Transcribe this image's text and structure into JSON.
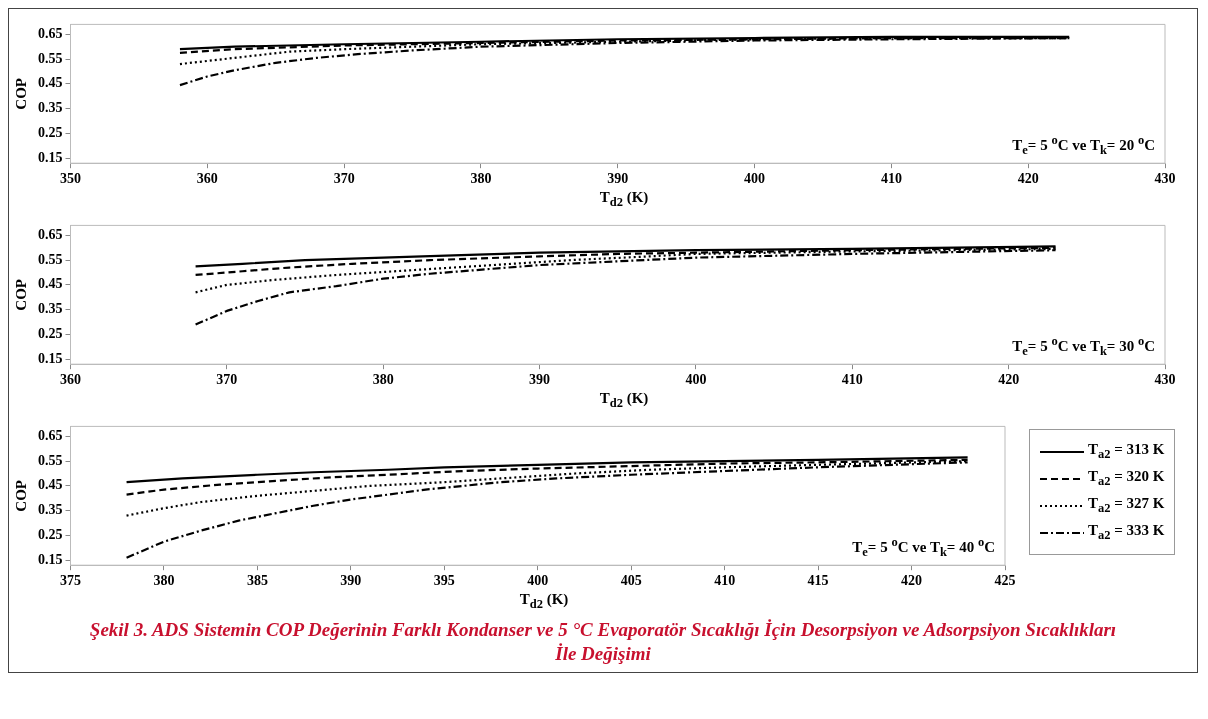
{
  "chart_data": [
    {
      "type": "line",
      "ylabel": "COP",
      "xlabel": "T$_{d2}$ (K)",
      "xlim": [
        350,
        430
      ],
      "xticks": [
        350,
        360,
        370,
        380,
        390,
        400,
        410,
        420,
        430
      ],
      "ylim": [
        0.13,
        0.69
      ],
      "yticks": [
        0.15,
        0.25,
        0.35,
        0.45,
        0.55,
        0.65
      ],
      "grid": false,
      "legend": false,
      "marker": "none",
      "annotations": [
        "T$_{e}$= 5 $^{o}$C ve T$_{k}$= 20 $^{o}$C"
      ],
      "series": [
        {
          "color": "#000000",
          "line_style": "solid",
          "x": [
            358,
            362,
            370,
            380,
            390,
            400,
            410,
            423
          ],
          "values": [
            0.59,
            0.6,
            0.61,
            0.62,
            0.63,
            0.635,
            0.64,
            0.64
          ]
        },
        {
          "color": "#000000",
          "line_style": "dashed",
          "x": [
            358,
            362,
            370,
            380,
            390,
            400,
            410,
            423
          ],
          "values": [
            0.575,
            0.59,
            0.605,
            0.615,
            0.625,
            0.63,
            0.635,
            0.635
          ]
        },
        {
          "color": "#000000",
          "line_style": "dotted",
          "x": [
            358,
            362,
            366,
            370,
            380,
            390,
            400,
            410,
            423
          ],
          "values": [
            0.53,
            0.555,
            0.58,
            0.59,
            0.61,
            0.62,
            0.63,
            0.635,
            0.635
          ]
        },
        {
          "color": "#000000",
          "line_style": "dashdot",
          "x": [
            358,
            360,
            362,
            365,
            368,
            371,
            375,
            380,
            390,
            400,
            410,
            423
          ],
          "values": [
            0.445,
            0.48,
            0.505,
            0.535,
            0.555,
            0.57,
            0.585,
            0.6,
            0.615,
            0.625,
            0.63,
            0.635
          ]
        }
      ]
    },
    {
      "type": "line",
      "ylabel": "COP",
      "xlabel": "T$_{d2}$ (K)",
      "xlim": [
        360,
        430
      ],
      "xticks": [
        360,
        370,
        380,
        390,
        400,
        410,
        420,
        430
      ],
      "ylim": [
        0.13,
        0.69
      ],
      "yticks": [
        0.15,
        0.25,
        0.35,
        0.45,
        0.55,
        0.65
      ],
      "grid": false,
      "legend": false,
      "marker": "none",
      "annotations": [
        "T$_{e}$= 5 $^{o}$C ve T$_{k}$= 30 $^{o}$C"
      ],
      "series": [
        {
          "color": "#000000",
          "line_style": "solid",
          "x": [
            368,
            371,
            375,
            380,
            385,
            390,
            395,
            400,
            410,
            423
          ],
          "values": [
            0.525,
            0.535,
            0.55,
            0.56,
            0.57,
            0.58,
            0.585,
            0.59,
            0.595,
            0.605
          ]
        },
        {
          "color": "#000000",
          "line_style": "dashed",
          "x": [
            368,
            371,
            374,
            378,
            383,
            390,
            395,
            400,
            410,
            423
          ],
          "values": [
            0.49,
            0.505,
            0.52,
            0.535,
            0.55,
            0.565,
            0.575,
            0.58,
            0.59,
            0.6
          ]
        },
        {
          "color": "#000000",
          "line_style": "dotted",
          "x": [
            368,
            370,
            373,
            377,
            382,
            387,
            392,
            397,
            400,
            410,
            423
          ],
          "values": [
            0.42,
            0.45,
            0.47,
            0.49,
            0.51,
            0.53,
            0.55,
            0.565,
            0.575,
            0.585,
            0.595
          ]
        },
        {
          "color": "#000000",
          "line_style": "dashdot",
          "x": [
            368,
            370,
            372,
            374,
            377,
            380,
            383,
            387,
            390,
            395,
            400,
            410,
            423
          ],
          "values": [
            0.29,
            0.345,
            0.385,
            0.42,
            0.445,
            0.475,
            0.495,
            0.515,
            0.53,
            0.545,
            0.56,
            0.575,
            0.59
          ]
        }
      ]
    },
    {
      "type": "line",
      "ylabel": "COP",
      "xlabel": "T$_{d2}$ (K)",
      "xlim": [
        375,
        425
      ],
      "xticks": [
        375,
        380,
        385,
        390,
        395,
        400,
        405,
        410,
        415,
        420,
        425
      ],
      "ylim": [
        0.13,
        0.69
      ],
      "yticks": [
        0.15,
        0.25,
        0.35,
        0.45,
        0.55,
        0.65
      ],
      "grid": false,
      "legend": "right",
      "marker": "none",
      "annotations": [
        "T$_{e}$= 5 $^{o}$C ve T$_{k}$= 40 $^{o}$C",
        "Şekil 3. ADS Sistemin COP Değerinin Farklı Kondanser ve 5 °C Evaporatör Sıcaklığı İçin Desorpsiyon ve Adsorpsiyon Sıcaklıkları İle Değişimi"
      ],
      "series": [
        {
          "name": "T$_{a2}$ = 313 K",
          "color": "#000000",
          "line_style": "solid",
          "x": [
            378,
            381,
            385,
            388,
            392,
            395,
            400,
            405,
            410,
            415,
            423
          ],
          "values": [
            0.465,
            0.48,
            0.495,
            0.505,
            0.515,
            0.525,
            0.535,
            0.545,
            0.55,
            0.555,
            0.565
          ]
        },
        {
          "name": "T$_{a2}$ = 320 K",
          "color": "#000000",
          "line_style": "dashed",
          "x": [
            378,
            380,
            383,
            386,
            389,
            392,
            396,
            400,
            405,
            410,
            415,
            423
          ],
          "values": [
            0.415,
            0.435,
            0.455,
            0.47,
            0.485,
            0.495,
            0.51,
            0.52,
            0.53,
            0.54,
            0.545,
            0.555
          ]
        },
        {
          "name": "T$_{a2}$ = 327 K",
          "color": "#000000",
          "line_style": "dotted",
          "x": [
            378,
            380,
            382,
            385,
            388,
            391,
            395,
            398,
            402,
            406,
            410,
            415,
            423
          ],
          "values": [
            0.33,
            0.36,
            0.385,
            0.41,
            0.43,
            0.45,
            0.465,
            0.48,
            0.5,
            0.515,
            0.525,
            0.535,
            0.55
          ]
        },
        {
          "name": "T$_{a2}$ = 333 K",
          "color": "#000000",
          "line_style": "dashdot",
          "x": [
            378,
            380,
            382,
            384,
            386,
            388,
            390,
            392,
            394,
            396,
            398,
            401,
            405,
            410,
            415,
            423
          ],
          "values": [
            0.16,
            0.225,
            0.27,
            0.31,
            0.34,
            0.37,
            0.395,
            0.415,
            0.435,
            0.45,
            0.465,
            0.48,
            0.495,
            0.51,
            0.525,
            0.545
          ]
        }
      ]
    }
  ]
}
